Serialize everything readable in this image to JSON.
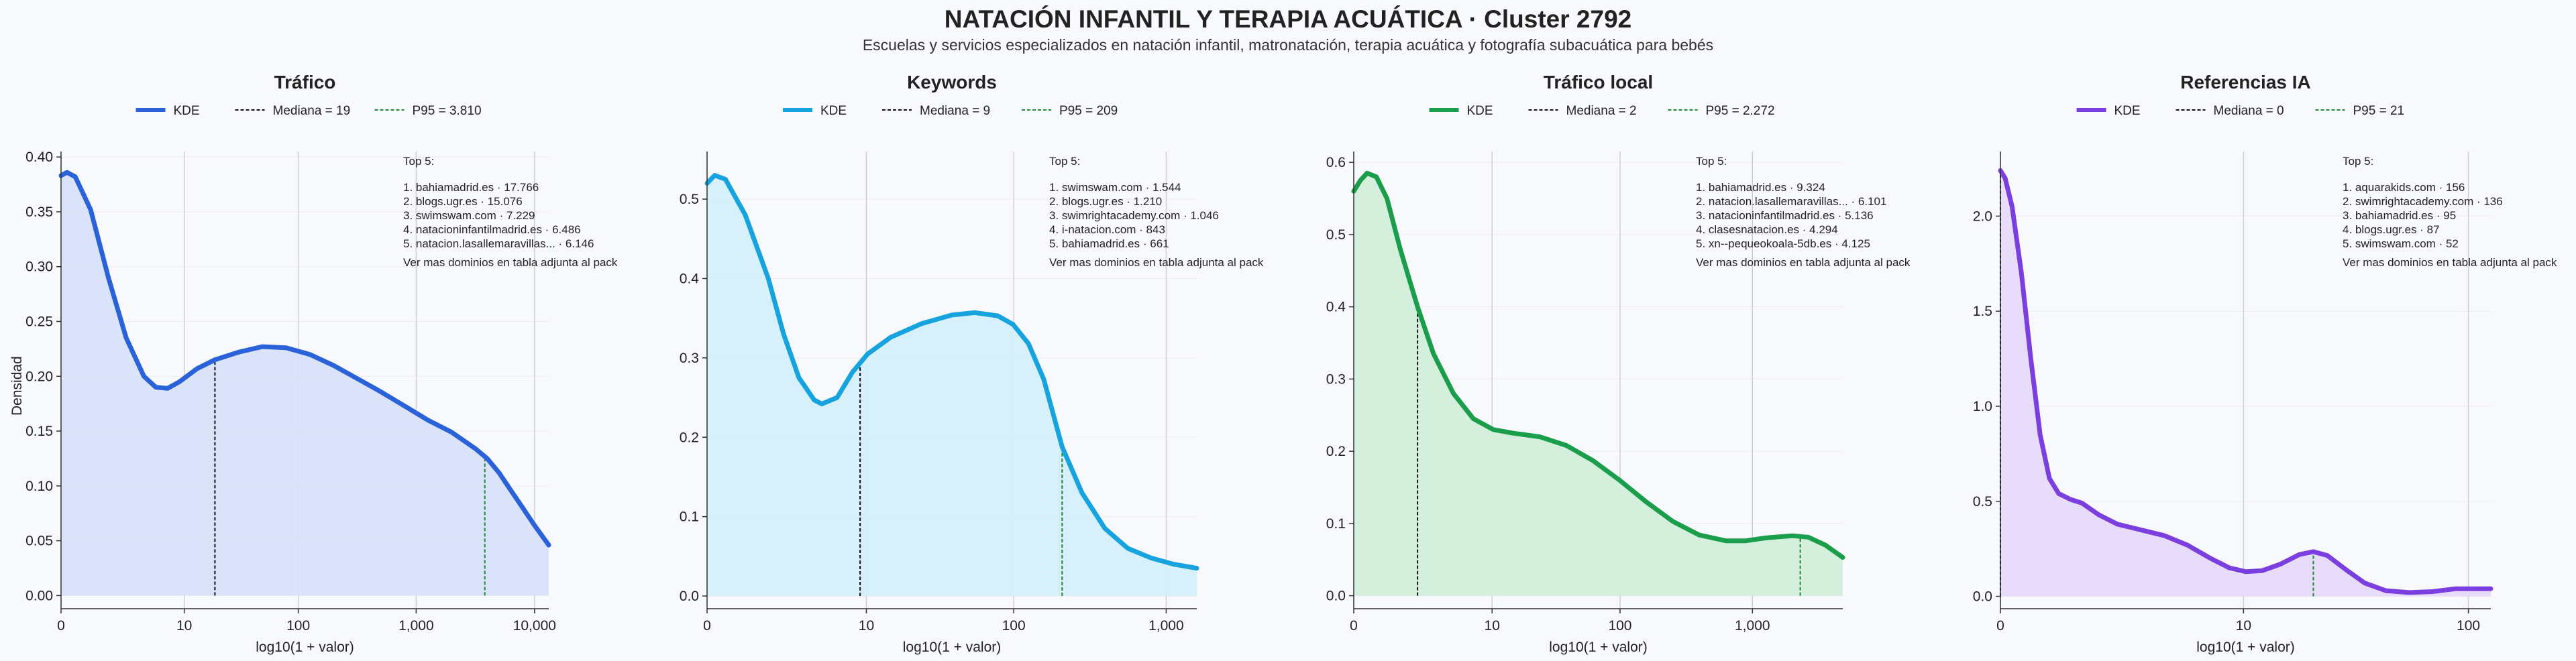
{
  "figure": {
    "title": "NATACIÓN INFANTIL Y TERAPIA ACUÁTICA · Cluster 2792",
    "subtitle": "Escuelas y servicios especializados en natación infantil, matronatación, terapia acuática y fotografía subacuática para bebés",
    "ylabel": "Densidad",
    "xlabel": "log10(1 + valor)",
    "legend_kde": "KDE",
    "top_heading": "Top 5:",
    "top_footer": "Ver mas dominios en tabla adjunta al pack",
    "median_color": "#111111",
    "p95_color": "#1e8a2e"
  },
  "chart_data": [
    {
      "type": "area",
      "title": "Tráfico",
      "color": "#2a62d9",
      "fill": "#d8e2f9",
      "legend": [
        "KDE",
        "Mediana = 19",
        "P95 = 3.810"
      ],
      "xlim": [
        0,
        4.12
      ],
      "ylim": [
        -0.012,
        0.405
      ],
      "xticks": [
        0,
        1.041,
        2.004,
        3.0,
        4.0
      ],
      "xticklabels": [
        "0",
        "10",
        "100",
        "1,000",
        "10,000"
      ],
      "yticks": [
        0,
        0.05,
        0.1,
        0.15,
        0.2,
        0.25,
        0.3,
        0.35,
        0.4
      ],
      "yticklabels": [
        "0.00",
        "0.05",
        "0.10",
        "0.15",
        "0.20",
        "0.25",
        "0.30",
        "0.35",
        "0.40"
      ],
      "median": 1.3,
      "p95": 3.58,
      "curve": [
        [
          0,
          0.383
        ],
        [
          0.05,
          0.386
        ],
        [
          0.12,
          0.382
        ],
        [
          0.25,
          0.352
        ],
        [
          0.4,
          0.29
        ],
        [
          0.55,
          0.235
        ],
        [
          0.7,
          0.2
        ],
        [
          0.8,
          0.19
        ],
        [
          0.9,
          0.189
        ],
        [
          1.0,
          0.195
        ],
        [
          1.15,
          0.207
        ],
        [
          1.3,
          0.215
        ],
        [
          1.5,
          0.222
        ],
        [
          1.7,
          0.227
        ],
        [
          1.9,
          0.226
        ],
        [
          2.1,
          0.22
        ],
        [
          2.3,
          0.21
        ],
        [
          2.5,
          0.198
        ],
        [
          2.7,
          0.186
        ],
        [
          2.9,
          0.173
        ],
        [
          3.1,
          0.16
        ],
        [
          3.3,
          0.149
        ],
        [
          3.5,
          0.134
        ],
        [
          3.6,
          0.125
        ],
        [
          3.7,
          0.112
        ],
        [
          3.8,
          0.096
        ],
        [
          3.9,
          0.08
        ],
        [
          4.0,
          0.064
        ],
        [
          4.12,
          0.046
        ]
      ],
      "top5": [
        "1. bahiamadrid.es · 17.766",
        "2. blogs.ugr.es · 15.076",
        "3. swimswam.com · 7.229",
        "4. natacioninfantilmadrid.es · 6.486",
        "5. natacion.lasallemaravillas... · 6.146"
      ]
    },
    {
      "type": "area",
      "title": "Keywords",
      "color": "#17a3dd",
      "fill": "#d4f0fb",
      "legend": [
        "KDE",
        "Mediana = 9",
        "P95 = 209"
      ],
      "xlim": [
        0,
        3.2
      ],
      "ylim": [
        -0.016,
        0.56
      ],
      "xticks": [
        0,
        1.041,
        2.004,
        3.0
      ],
      "xticklabels": [
        "0",
        "10",
        "100",
        "1,000"
      ],
      "yticks": [
        0,
        0.1,
        0.2,
        0.3,
        0.4,
        0.5
      ],
      "yticklabels": [
        "0.0",
        "0.1",
        "0.2",
        "0.3",
        "0.4",
        "0.5"
      ],
      "median": 1.0,
      "p95": 2.32,
      "curve": [
        [
          0,
          0.52
        ],
        [
          0.05,
          0.53
        ],
        [
          0.12,
          0.525
        ],
        [
          0.25,
          0.48
        ],
        [
          0.4,
          0.4
        ],
        [
          0.5,
          0.33
        ],
        [
          0.6,
          0.275
        ],
        [
          0.7,
          0.247
        ],
        [
          0.75,
          0.242
        ],
        [
          0.85,
          0.25
        ],
        [
          0.95,
          0.282
        ],
        [
          1.05,
          0.305
        ],
        [
          1.2,
          0.326
        ],
        [
          1.4,
          0.343
        ],
        [
          1.6,
          0.354
        ],
        [
          1.75,
          0.357
        ],
        [
          1.9,
          0.353
        ],
        [
          2.0,
          0.342
        ],
        [
          2.1,
          0.318
        ],
        [
          2.2,
          0.273
        ],
        [
          2.32,
          0.188
        ],
        [
          2.45,
          0.13
        ],
        [
          2.6,
          0.085
        ],
        [
          2.75,
          0.06
        ],
        [
          2.9,
          0.048
        ],
        [
          3.05,
          0.04
        ],
        [
          3.2,
          0.035
        ]
      ],
      "top5": [
        "1. swimswam.com · 1.544",
        "2. blogs.ugr.es · 1.210",
        "3. swimrightacademy.com · 1.046",
        "4. i-natacion.com · 843",
        "5. bahiamadrid.es · 661"
      ]
    },
    {
      "type": "area",
      "title": "Tráfico local",
      "color": "#1a9e4b",
      "fill": "#d3eedb",
      "legend": [
        "KDE",
        "Mediana = 2",
        "P95 = 2.272"
      ],
      "xlim": [
        0,
        3.68
      ],
      "ylim": [
        -0.018,
        0.615
      ],
      "xticks": [
        0,
        1.041,
        2.004,
        3.0
      ],
      "xticklabels": [
        "0",
        "10",
        "100",
        "1,000"
      ],
      "yticks": [
        0,
        0.1,
        0.2,
        0.3,
        0.4,
        0.5,
        0.6
      ],
      "yticklabels": [
        "0.0",
        "0.1",
        "0.2",
        "0.3",
        "0.4",
        "0.5",
        "0.6"
      ],
      "median": 0.48,
      "p95": 3.36,
      "curve": [
        [
          0,
          0.56
        ],
        [
          0.05,
          0.575
        ],
        [
          0.1,
          0.585
        ],
        [
          0.17,
          0.58
        ],
        [
          0.25,
          0.55
        ],
        [
          0.35,
          0.48
        ],
        [
          0.48,
          0.4
        ],
        [
          0.6,
          0.335
        ],
        [
          0.75,
          0.28
        ],
        [
          0.9,
          0.245
        ],
        [
          1.05,
          0.23
        ],
        [
          1.2,
          0.225
        ],
        [
          1.4,
          0.22
        ],
        [
          1.6,
          0.208
        ],
        [
          1.8,
          0.187
        ],
        [
          2.0,
          0.16
        ],
        [
          2.2,
          0.13
        ],
        [
          2.4,
          0.103
        ],
        [
          2.6,
          0.084
        ],
        [
          2.8,
          0.076
        ],
        [
          2.95,
          0.076
        ],
        [
          3.1,
          0.08
        ],
        [
          3.3,
          0.083
        ],
        [
          3.42,
          0.081
        ],
        [
          3.55,
          0.07
        ],
        [
          3.68,
          0.053
        ]
      ],
      "top5": [
        "1. bahiamadrid.es · 9.324",
        "2. natacion.lasallemaravillas... · 6.101",
        "3. natacioninfantilmadrid.es · 5.136",
        "4. clasesnatacion.es · 4.294",
        "5. xn--pequeokoala-5db.es · 4.125"
      ]
    },
    {
      "type": "area",
      "title": "Referencias IA",
      "color": "#7b3fe0",
      "fill": "#e6dafa",
      "legend": [
        "KDE",
        "Mediana = 0",
        "P95 = 21"
      ],
      "xlim": [
        0,
        2.1
      ],
      "ylim": [
        -0.065,
        2.34
      ],
      "xticks": [
        0,
        1.041,
        2.004
      ],
      "xticklabels": [
        "0",
        "10",
        "100"
      ],
      "yticks": [
        0,
        0.5,
        1.0,
        1.5,
        2.0
      ],
      "yticklabels": [
        "0.0",
        "0.5",
        "1.0",
        "1.5",
        "2.0"
      ],
      "median": 0.0,
      "p95": 1.34,
      "curve": [
        [
          0,
          2.24
        ],
        [
          0.02,
          2.2
        ],
        [
          0.05,
          2.05
        ],
        [
          0.09,
          1.7
        ],
        [
          0.13,
          1.25
        ],
        [
          0.17,
          0.85
        ],
        [
          0.21,
          0.62
        ],
        [
          0.25,
          0.54
        ],
        [
          0.3,
          0.51
        ],
        [
          0.35,
          0.49
        ],
        [
          0.42,
          0.43
        ],
        [
          0.5,
          0.38
        ],
        [
          0.6,
          0.35
        ],
        [
          0.7,
          0.32
        ],
        [
          0.8,
          0.27
        ],
        [
          0.9,
          0.2
        ],
        [
          0.98,
          0.15
        ],
        [
          1.05,
          0.13
        ],
        [
          1.12,
          0.135
        ],
        [
          1.2,
          0.17
        ],
        [
          1.28,
          0.22
        ],
        [
          1.34,
          0.235
        ],
        [
          1.4,
          0.215
        ],
        [
          1.48,
          0.14
        ],
        [
          1.56,
          0.07
        ],
        [
          1.65,
          0.03
        ],
        [
          1.75,
          0.02
        ],
        [
          1.85,
          0.025
        ],
        [
          1.95,
          0.04
        ],
        [
          2.1,
          0.04
        ]
      ],
      "top5": [
        "1. aquarakids.com · 156",
        "2. swimrightacademy.com · 136",
        "3. bahiamadrid.es · 95",
        "4. blogs.ugr.es · 87",
        "5. swimswam.com · 52"
      ]
    }
  ]
}
